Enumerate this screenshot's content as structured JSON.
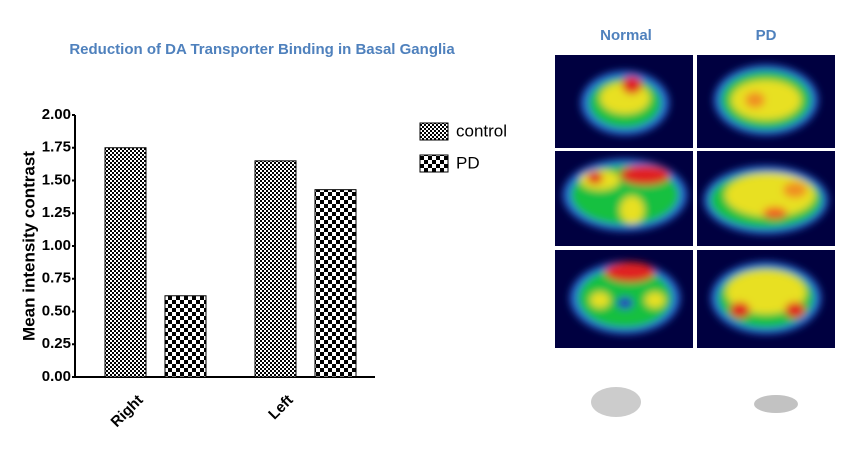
{
  "chart_data": {
    "type": "bar",
    "title": "Reduction of DA Transporter Binding in Basal Ganglia",
    "y_label": "Mean intensity contrast",
    "categories": [
      "Right",
      "Left"
    ],
    "series": [
      {
        "name": "control",
        "pattern": "fine",
        "color": "#000000",
        "values": [
          1.75,
          1.65
        ]
      },
      {
        "name": "PD",
        "pattern": "checker",
        "color": "#000000",
        "values": [
          0.62,
          1.43
        ]
      }
    ],
    "ylim": [
      0,
      2
    ],
    "yticks": [
      {
        "value": 0,
        "label": "0.00"
      },
      {
        "value": 0.25,
        "label": "0.25"
      },
      {
        "value": 0.5,
        "label": "0.50"
      },
      {
        "value": 0.75,
        "label": "0.75"
      },
      {
        "value": 1,
        "label": "1.00"
      },
      {
        "value": 1.25,
        "label": "1.25"
      },
      {
        "value": 1.5,
        "label": "1.50"
      },
      {
        "value": 1.75,
        "label": "1.75"
      },
      {
        "value": 2,
        "label": "2.00"
      }
    ],
    "images": {
      "columns": [
        "Normal",
        "PD"
      ]
    }
  }
}
